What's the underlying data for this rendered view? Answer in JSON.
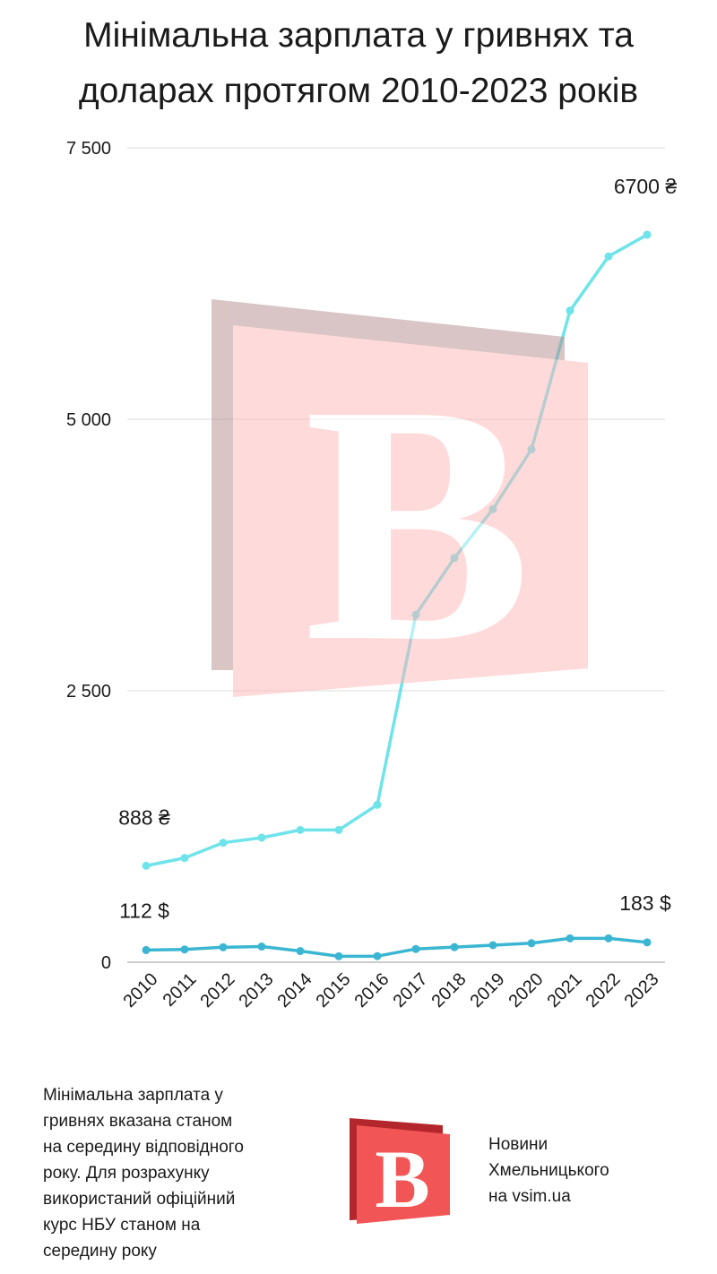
{
  "chart_data": {
    "type": "line",
    "title": [
      "Мінімальна зарплата у гривнях та",
      "доларах протягом 2010-2023 років"
    ],
    "categories": [
      "2010",
      "2011",
      "2012",
      "2013",
      "2014",
      "2015",
      "2016",
      "2017",
      "2018",
      "2019",
      "2020",
      "2021",
      "2022",
      "2023"
    ],
    "series": [
      {
        "name": "UAH",
        "color": "#6fe3ea",
        "values": [
          888,
          960,
          1100,
          1147,
          1218,
          1218,
          1450,
          3200,
          3723,
          4173,
          4723,
          6000,
          6500,
          6700
        ],
        "value_labels": [
          "888 ₴",
          null,
          null,
          null,
          null,
          null,
          null,
          null,
          null,
          null,
          null,
          null,
          null,
          "6700 ₴"
        ]
      },
      {
        "name": "USD",
        "color": "#3bb6d2",
        "values": [
          112,
          118,
          138,
          144,
          103,
          55,
          56,
          122,
          139,
          157,
          175,
          220,
          220,
          183
        ],
        "value_labels": [
          "112 $",
          null,
          null,
          null,
          null,
          null,
          null,
          null,
          null,
          null,
          null,
          null,
          null,
          "183 $"
        ]
      }
    ],
    "ylim": [
      0,
      7500
    ],
    "yticks": [
      0,
      {
        "value": 2500,
        "label": "2 500"
      },
      {
        "value": 5000,
        "label": "5 000"
      },
      {
        "value": 7500,
        "label": "7 500"
      }
    ],
    "grid": true
  },
  "note": [
    "Мінімальна зарплата у",
    "гривнях вказана станом",
    "на середину відповідного",
    "року. Для розрахунку",
    "використаний офіційний",
    "курс НБУ станом на",
    "середину року"
  ],
  "source": [
    "Новини",
    "Хмельницького",
    "на vsim.ua"
  ],
  "logo_letter": "B"
}
